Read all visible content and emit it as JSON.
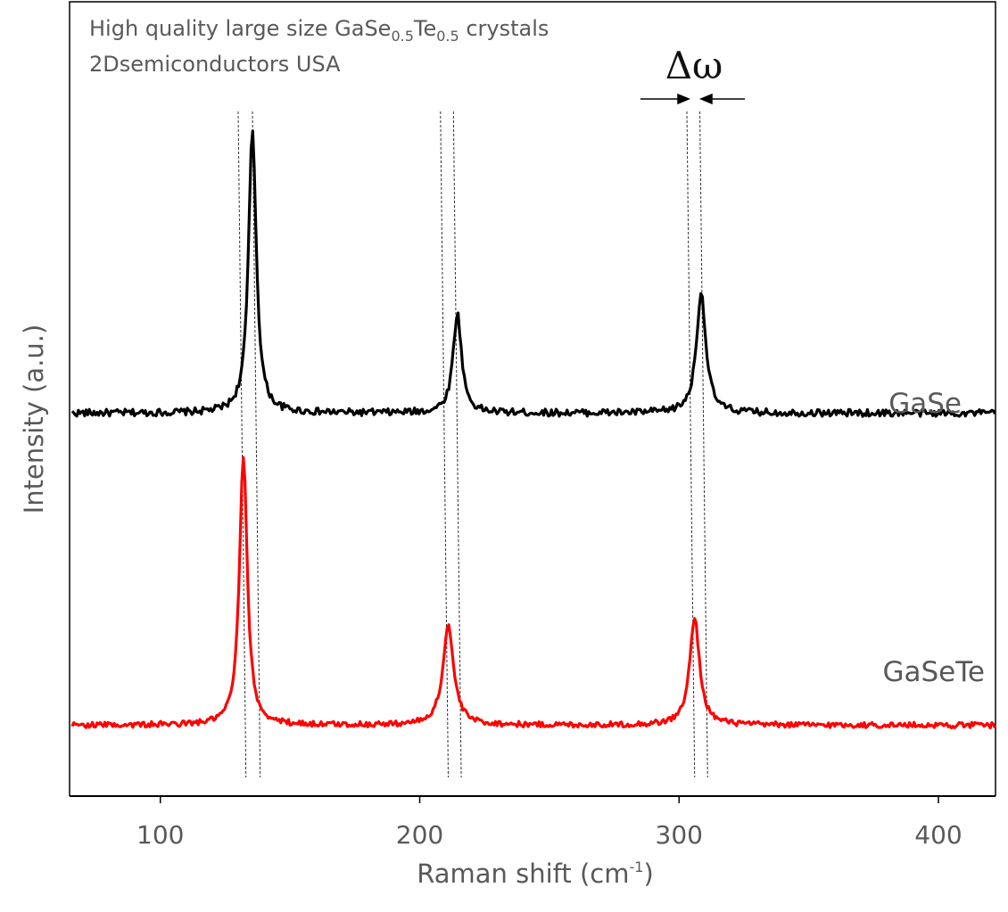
{
  "chart_data": {
    "type": "line",
    "annotation": {
      "line1_prefix": "High quality large size GaSe",
      "sub1": "0.5",
      "mid": "Te",
      "sub2": "0.5",
      "line1_suffix": " crystals",
      "line2": "2Dsemiconductors USA",
      "delta_label": "Δω"
    },
    "xlabel": {
      "main": "Raman shift (cm",
      "sup": "-1",
      "close": ")"
    },
    "ylabel": "Intensity (a.u.)",
    "xlim": [
      65,
      422
    ],
    "ylim": [
      0,
      1.12
    ],
    "xticks": [
      100,
      200,
      300,
      400
    ],
    "yticks_shown": false,
    "grid": false,
    "legend": "none",
    "series": [
      {
        "name": "GaSe",
        "color": "#000000",
        "baseline": 0.54,
        "noise": 0.005,
        "peaks": [
          {
            "x": 135.5,
            "height": 0.4,
            "width": 1.8
          },
          {
            "x": 214.5,
            "height": 0.14,
            "width": 2.0
          },
          {
            "x": 308.5,
            "height": 0.17,
            "width": 2.2
          }
        ]
      },
      {
        "name": "GaSeTe",
        "color": "#ff0000",
        "baseline": 0.1,
        "noise": 0.004,
        "peaks": [
          {
            "x": 132.0,
            "height": 0.38,
            "width": 1.8
          },
          {
            "x": 211.0,
            "height": 0.14,
            "width": 2.5
          },
          {
            "x": 306.0,
            "height": 0.15,
            "width": 2.3
          }
        ]
      }
    ],
    "guide_lines": [
      {
        "x_top": 130.0,
        "x_bottom": 133.0
      },
      {
        "x_top": 135.5,
        "x_bottom": 138.5
      },
      {
        "x_top": 208.0,
        "x_bottom": 211.0
      },
      {
        "x_top": 213.0,
        "x_bottom": 216.0
      },
      {
        "x_top": 303.0,
        "x_bottom": 306.0
      },
      {
        "x_top": 308.0,
        "x_bottom": 311.0
      }
    ]
  }
}
